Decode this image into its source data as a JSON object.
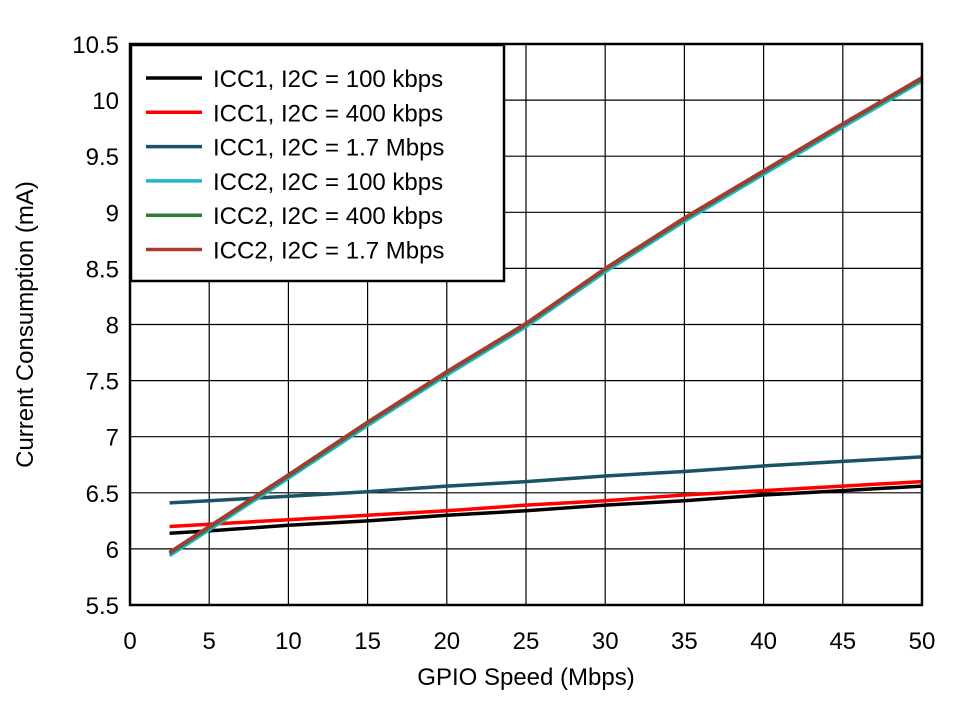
{
  "chart_data": {
    "type": "line",
    "title": "",
    "xlabel": "GPIO Speed (Mbps)",
    "ylabel": "Current Consumption (mA)",
    "xlim": [
      0,
      50
    ],
    "ylim": [
      5.5,
      10.5
    ],
    "xticks": [
      0,
      5,
      10,
      15,
      20,
      25,
      30,
      35,
      40,
      45,
      50
    ],
    "yticks": [
      5.5,
      6,
      6.5,
      7,
      7.5,
      8,
      8.5,
      9,
      9.5,
      10,
      10.5
    ],
    "xtick_labels": [
      "0",
      "5",
      "10",
      "15",
      "20",
      "25",
      "30",
      "35",
      "40",
      "45",
      "50"
    ],
    "ytick_labels": [
      "5.5",
      "6",
      "6.5",
      "7",
      "7.5",
      "8",
      "8.5",
      "9",
      "9.5",
      "10",
      "10.5"
    ],
    "grid": true,
    "legend_position": "top-left",
    "series": [
      {
        "name": "ICC1, I2C = 100 kbps",
        "color": "#000000",
        "x": [
          2.5,
          5,
          10,
          15,
          20,
          25,
          30,
          35,
          40,
          45,
          50
        ],
        "y": [
          6.14,
          6.16,
          6.21,
          6.25,
          6.3,
          6.34,
          6.39,
          6.43,
          6.48,
          6.52,
          6.56
        ]
      },
      {
        "name": "ICC1, I2C = 400 kbps",
        "color": "#ff0000",
        "x": [
          2.5,
          5,
          10,
          15,
          20,
          25,
          30,
          35,
          40,
          45,
          50
        ],
        "y": [
          6.2,
          6.22,
          6.26,
          6.3,
          6.34,
          6.39,
          6.43,
          6.48,
          6.52,
          6.56,
          6.6
        ]
      },
      {
        "name": "ICC1, I2C = 1.7 Mbps",
        "color": "#1a5266",
        "x": [
          2.5,
          5,
          10,
          15,
          20,
          25,
          30,
          35,
          40,
          45,
          50
        ],
        "y": [
          6.41,
          6.43,
          6.47,
          6.51,
          6.56,
          6.6,
          6.65,
          6.69,
          6.74,
          6.78,
          6.82
        ]
      },
      {
        "name": "ICC2, I2C = 100 kbps",
        "color": "#1fb5cc",
        "x": [
          2.5,
          5,
          10,
          15,
          20,
          25,
          30,
          35,
          40,
          45,
          50
        ],
        "y": [
          5.94,
          6.17,
          6.63,
          7.1,
          7.55,
          7.98,
          8.47,
          8.92,
          9.34,
          9.76,
          10.17
        ]
      },
      {
        "name": "ICC2, I2C = 400 kbps",
        "color": "#2e7d32",
        "x": [
          2.5,
          5,
          10,
          15,
          20,
          25,
          30,
          35,
          40,
          45,
          50
        ],
        "y": [
          5.96,
          6.19,
          6.65,
          7.12,
          7.57,
          8.0,
          8.49,
          8.94,
          9.36,
          9.78,
          10.19
        ]
      },
      {
        "name": "ICC2, I2C = 1.7 Mbps",
        "color": "#a83a32",
        "x": [
          2.5,
          5,
          10,
          15,
          20,
          25,
          30,
          35,
          40,
          45,
          50
        ],
        "y": [
          5.97,
          6.2,
          6.66,
          7.13,
          7.58,
          8.01,
          8.5,
          8.95,
          9.37,
          9.79,
          10.2
        ]
      }
    ]
  }
}
